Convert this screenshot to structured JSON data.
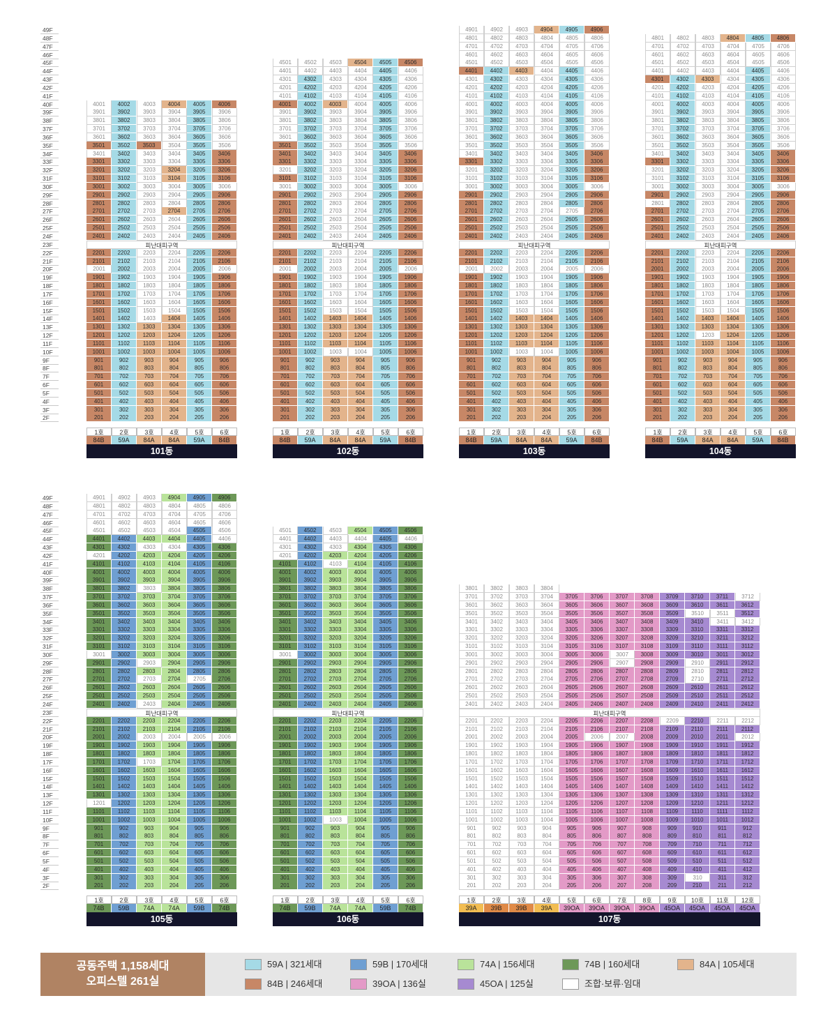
{
  "colors": {
    "59A": "#a5dae6",
    "59B": "#6f9fd2",
    "74A": "#b9e39a",
    "74B": "#6d9858",
    "84A": "#e3b48c",
    "84B": "#c78766",
    "39OA": "#e39ac7",
    "45OA": "#a68ad1",
    "39A": "#f2bd52",
    "39B": "#e08a47",
    "reserved": "#ffffff"
  },
  "refuge_label": "피난대피구역",
  "legend": {
    "title_line1": "공동주택 1,158세대",
    "title_line2": "오피스텔 261실",
    "items": [
      {
        "key": "59A",
        "label": "59A | 321세대"
      },
      {
        "key": "59B",
        "label": "59B | 170세대"
      },
      {
        "key": "74A",
        "label": "74A | 156세대"
      },
      {
        "key": "74B",
        "label": "74B | 160세대"
      },
      {
        "key": "84A",
        "label": "84A | 105세대"
      },
      {
        "key": "84B",
        "label": "84B | 246세대"
      },
      {
        "key": "39OA",
        "label": "39OA | 136실"
      },
      {
        "key": "45OA",
        "label": "45OA | 125실"
      },
      {
        "key": "reserved",
        "label": "조합·보류·임대"
      }
    ]
  },
  "buildings": [
    {
      "name": "101동",
      "top_floor": 40,
      "units": 6,
      "col_types": [
        "84B",
        "59A",
        "84A",
        "84A",
        "59A",
        "84B"
      ],
      "ho_labels": [
        "1호",
        "2호",
        "3호",
        "4호",
        "5호",
        "6호"
      ],
      "type_labels": [
        "84B",
        "59A",
        "84A",
        "84A",
        "59A",
        "84B"
      ],
      "reserved": [
        "4001",
        "4003",
        "3901",
        "3903",
        "3904",
        "3906",
        "3801",
        "3803",
        "3804",
        "3806",
        "3701",
        "3703",
        "3704",
        "3706",
        "3601",
        "3603",
        "3604",
        "3606",
        "3504",
        "3506",
        "3401",
        "3403",
        "3404",
        "3303",
        "3304",
        "3203",
        "3103",
        "3003",
        "3004",
        "3006",
        "2903",
        "2904",
        "2803",
        "2804",
        "2703",
        "2603",
        "2604",
        "2503",
        "2504",
        "2403",
        "2404",
        "2203",
        "2204",
        "2103",
        "2104",
        "2001",
        "2003",
        "2004",
        "2006",
        "1903",
        "1904",
        "1803",
        "1804",
        "1703",
        "1704",
        "1603",
        "1604",
        "1503",
        "1504",
        "1403"
      ],
      "overrides": {
        "3501": "84B",
        "3503": "84B",
        "4004": "84A"
      }
    },
    {
      "name": "102동",
      "top_floor": 45,
      "units": 6,
      "col_types": [
        "84B",
        "59A",
        "84A",
        "84A",
        "59A",
        "84B"
      ],
      "ho_labels": [
        "1호",
        "2호",
        "3호",
        "4호",
        "5호",
        "6호"
      ],
      "type_labels": [
        "84B",
        "59A",
        "84A",
        "84A",
        "59A",
        "84B"
      ],
      "reserved": [
        "4501",
        "4502",
        "4503",
        "4401",
        "4402",
        "4403",
        "4404",
        "4406",
        "4301",
        "4303",
        "4304",
        "4306",
        "4201",
        "4203",
        "4204",
        "4206",
        "4101",
        "4103",
        "4104",
        "4106",
        "4004",
        "4006",
        "3901",
        "3903",
        "3904",
        "3906",
        "3801",
        "3803",
        "3804",
        "3806",
        "3701",
        "3703",
        "3704",
        "3706",
        "3601",
        "3603",
        "3604",
        "3606",
        "3503",
        "3504",
        "3506",
        "3403",
        "3404",
        "3303",
        "3304",
        "3201",
        "3203",
        "3204",
        "3103",
        "3104",
        "3001",
        "3003",
        "3004",
        "3006",
        "2903",
        "2904",
        "2803",
        "2804",
        "2703",
        "2704",
        "2603",
        "2604",
        "2503",
        "2504",
        "2403",
        "2404",
        "2203",
        "2204",
        "2103",
        "2104",
        "2001",
        "2003",
        "2004",
        "2006",
        "1903",
        "1904",
        "1803",
        "1804",
        "1703",
        "1704",
        "1603",
        "1604",
        "1503",
        "1504",
        "1003",
        "1004"
      ],
      "overrides": {
        "4504": "84A",
        "4506": "84B",
        "4001": "84B",
        "4003": "84A"
      }
    },
    {
      "name": "103동",
      "top_floor": 49,
      "units": 6,
      "col_types": [
        "84B",
        "59A",
        "84A",
        "84A",
        "59A",
        "84B"
      ],
      "ho_labels": [
        "1호",
        "2호",
        "3호",
        "4호",
        "5호",
        "6호"
      ],
      "type_labels": [
        "84B",
        "59A",
        "84A",
        "84A",
        "59A",
        "84B"
      ],
      "reserved": [
        "4901",
        "4902",
        "4903",
        "4801",
        "4802",
        "4803",
        "4804",
        "4805",
        "4806",
        "4701",
        "4702",
        "4703",
        "4704",
        "4705",
        "4706",
        "4601",
        "4602",
        "4603",
        "4604",
        "4605",
        "4606",
        "4501",
        "4502",
        "4503",
        "4504",
        "4505",
        "4506",
        "4404",
        "4406",
        "4301",
        "4303",
        "4304",
        "4306",
        "4201",
        "4203",
        "4204",
        "4206",
        "4101",
        "4103",
        "4104",
        "4106",
        "4001",
        "4003",
        "4004",
        "4006",
        "3901",
        "3903",
        "3904",
        "3906",
        "3801",
        "3803",
        "3804",
        "3806",
        "3701",
        "3703",
        "3704",
        "3706",
        "3601",
        "3603",
        "3604",
        "3606",
        "3501",
        "3503",
        "3504",
        "3506",
        "3401",
        "3403",
        "3404",
        "3303",
        "3304",
        "3201",
        "3203",
        "3204",
        "3101",
        "3103",
        "3104",
        "3001",
        "3003",
        "3004",
        "3006",
        "2903",
        "2904",
        "2803",
        "2804",
        "2703",
        "2704",
        "2705",
        "2603",
        "2604",
        "2503",
        "2504",
        "2403",
        "2404",
        "2203",
        "2204",
        "2103",
        "2104",
        "2001",
        "2002",
        "2003",
        "2004",
        "2005",
        "2006",
        "1903",
        "1904",
        "1803",
        "1804",
        "1703",
        "1704",
        "1603",
        "1604",
        "1503",
        "1504",
        "1003",
        "1004"
      ],
      "overrides": {
        "4904": "84A",
        "4906": "84B",
        "4401": "84B",
        "4403": "84A"
      }
    },
    {
      "name": "104동",
      "top_floor": 48,
      "units": 6,
      "col_types": [
        "84B",
        "59A",
        "84A",
        "84A",
        "59A",
        "84B"
      ],
      "ho_labels": [
        "1호",
        "2호",
        "3호",
        "4호",
        "5호",
        "6호"
      ],
      "type_labels": [
        "84B",
        "59A",
        "84A",
        "84A",
        "59A",
        "84B"
      ],
      "reserved": [
        "4801",
        "4802",
        "4803",
        "4701",
        "4702",
        "4703",
        "4704",
        "4705",
        "4706",
        "4601",
        "4602",
        "4603",
        "4604",
        "4605",
        "4606",
        "4501",
        "4502",
        "4503",
        "4504",
        "4505",
        "4506",
        "4401",
        "4402",
        "4403",
        "4404",
        "4406",
        "4304",
        "4306",
        "4201",
        "4203",
        "4204",
        "4206",
        "4101",
        "4103",
        "4104",
        "4106",
        "4001",
        "4003",
        "4004",
        "4006",
        "3901",
        "3903",
        "3904",
        "3906",
        "3801",
        "3803",
        "3804",
        "3806",
        "3701",
        "3703",
        "3704",
        "3706",
        "3601",
        "3603",
        "3604",
        "3606",
        "3501",
        "3503",
        "3504",
        "3506",
        "3401",
        "3403",
        "3404",
        "3303",
        "3304",
        "3201",
        "3203",
        "3204",
        "3101",
        "3103",
        "3104",
        "3001",
        "3003",
        "3004",
        "3006",
        "2903",
        "2904",
        "2801",
        "2803",
        "2804",
        "2703",
        "2704",
        "2603",
        "2604",
        "2503",
        "2504",
        "2403",
        "2404",
        "2203",
        "2204",
        "2103",
        "2104",
        "2003",
        "2004",
        "1903",
        "1904",
        "1803",
        "1804",
        "1703",
        "1704",
        "1603",
        "1604",
        "1503",
        "1504",
        "1203"
      ],
      "overrides": {
        "4804": "84A",
        "4806": "84B",
        "4301": "84B",
        "4303": "84A",
        "1303": "84A",
        "1103": "84A"
      }
    },
    {
      "name": "105동",
      "top_floor": 49,
      "units": 6,
      "col_types": [
        "74B",
        "59B",
        "74A",
        "74A",
        "59B",
        "74B"
      ],
      "ho_labels": [
        "1호",
        "2호",
        "3호",
        "4호",
        "5호",
        "6호"
      ],
      "type_labels": [
        "74B",
        "59B",
        "74A",
        "74A",
        "59B",
        "74B"
      ],
      "reserved": [
        "4901",
        "4902",
        "4903",
        "4801",
        "4802",
        "4803",
        "4804",
        "4805",
        "4806",
        "4701",
        "4702",
        "4703",
        "4704",
        "4705",
        "4706",
        "4601",
        "4602",
        "4603",
        "4604",
        "4605",
        "4606",
        "4501",
        "4502",
        "4503",
        "4504",
        "4506",
        "4406",
        "4303",
        "4304",
        "4201",
        "3803",
        "3001",
        "2903",
        "2703",
        "2705",
        "2403",
        "2003",
        "2004",
        "2005",
        "2006",
        "1703",
        "1201"
      ],
      "overrides": {}
    },
    {
      "name": "106동",
      "top_floor": 45,
      "units": 6,
      "col_types": [
        "74B",
        "59B",
        "74A",
        "74A",
        "59B",
        "74B"
      ],
      "ho_labels": [
        "1호",
        "2호",
        "3호",
        "4호",
        "5호",
        "6호"
      ],
      "type_labels": [
        "74B",
        "59B",
        "74A",
        "74A",
        "59B",
        "74B"
      ],
      "reserved": [
        "4501",
        "4503",
        "4401",
        "4403",
        "4404",
        "4406",
        "4301",
        "4303",
        "4201",
        "4103",
        "3001",
        "1003"
      ],
      "overrides": {}
    },
    {
      "name": "107동",
      "top_floor": 38,
      "units": 12,
      "col_types": [
        "39A",
        "39B",
        "39B",
        "39A",
        "39OA",
        "39OA",
        "39OA",
        "39OA",
        "45OA",
        "45OA",
        "45OA",
        "45OA"
      ],
      "ho_labels": [
        "1호",
        "2호",
        "3호",
        "4호",
        "5호",
        "6호",
        "7호",
        "8호",
        "9호",
        "10호",
        "11호",
        "12호"
      ],
      "type_labels": [
        "39A",
        "39B",
        "39B",
        "39A",
        "39OA",
        "39OA",
        "39OA",
        "39OA",
        "45OA",
        "45OA",
        "45OA",
        "45OA"
      ],
      "reserved_cols": [
        1,
        2,
        3,
        4
      ],
      "reserved": [
        "3712",
        "3510",
        "3511",
        "3411",
        "3412",
        "3007",
        "2907",
        "2910",
        "2810",
        "2710",
        "2209",
        "2211",
        "2212",
        "2006",
        "2007",
        "2012",
        "310"
      ],
      "overrides": {}
    }
  ]
}
